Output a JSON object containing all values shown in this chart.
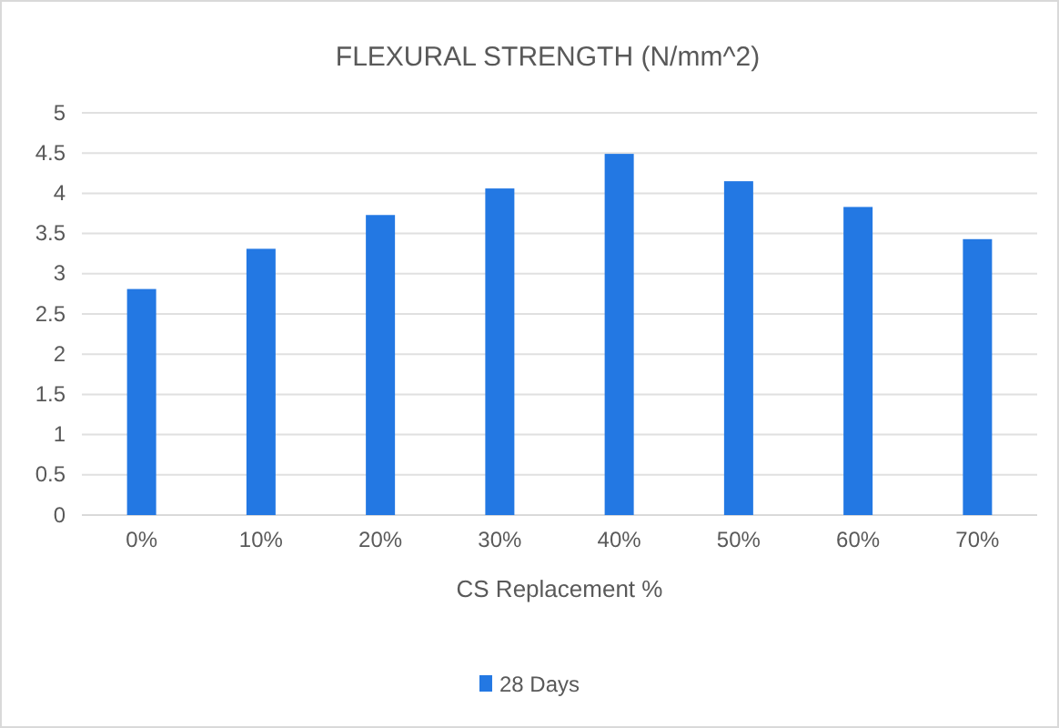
{
  "chart_data": {
    "type": "bar",
    "title": "FLEXURAL STRENGTH (N/mm^2)",
    "xlabel": "CS Replacement %",
    "categories": [
      "0%",
      "10%",
      "20%",
      "30%",
      "40%",
      "50%",
      "60%",
      "70%"
    ],
    "series": [
      {
        "name": "28 Days",
        "color": "#2378e3",
        "values": [
          2.81,
          3.31,
          3.73,
          4.06,
          4.49,
          4.15,
          3.83,
          3.43
        ]
      }
    ],
    "ylim": [
      0,
      5
    ],
    "yticks": [
      0,
      0.5,
      1,
      1.5,
      2,
      2.5,
      3,
      3.5,
      4,
      4.5,
      5
    ],
    "grid": "y",
    "legend": "bottom"
  }
}
